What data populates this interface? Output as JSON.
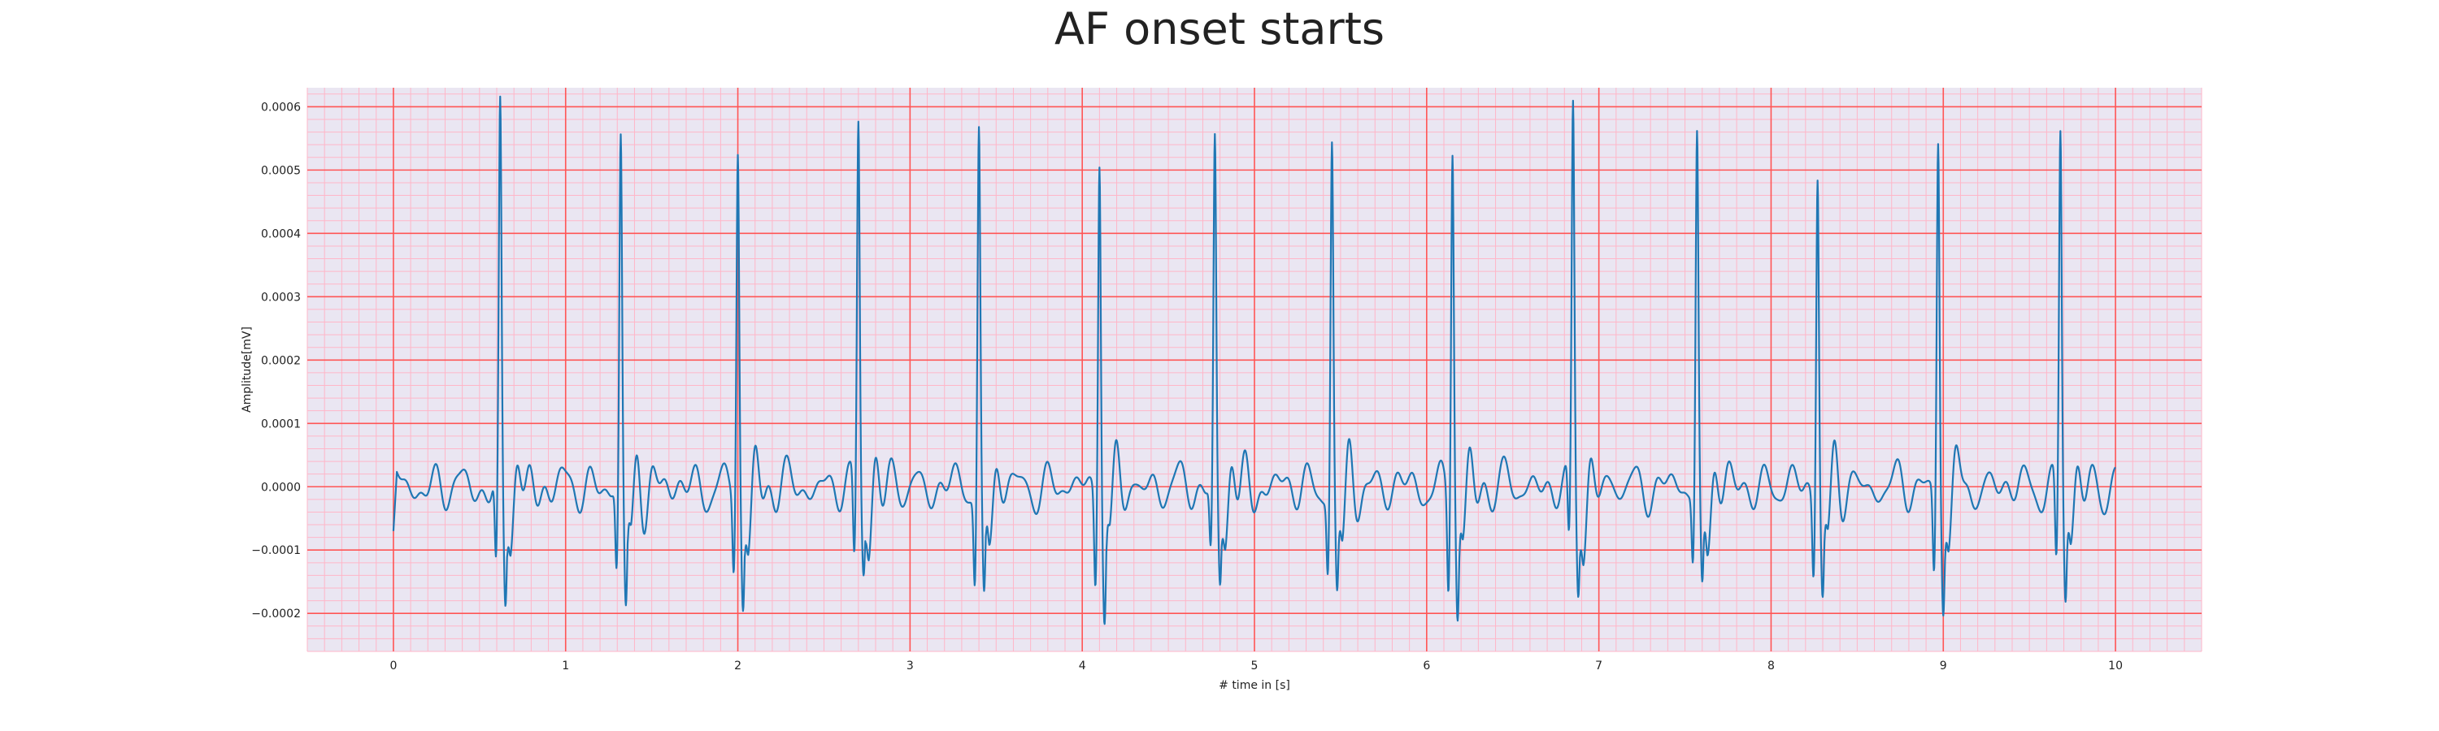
{
  "chart_data": {
    "type": "line",
    "title": "AF onset starts",
    "xlabel": "# time in [s]",
    "ylabel": "Amplitude[mV]",
    "xlim": [
      -0.5,
      10.5
    ],
    "ylim": [
      -0.00026,
      0.00063
    ],
    "x_ticks": [
      0,
      1,
      2,
      3,
      4,
      5,
      6,
      7,
      8,
      9,
      10
    ],
    "x_tick_labels": [
      "0",
      "1",
      "2",
      "3",
      "4",
      "5",
      "6",
      "7",
      "8",
      "9",
      "10"
    ],
    "y_ticks": [
      -0.0002,
      -0.0001,
      0.0,
      0.0001,
      0.0002,
      0.0003,
      0.0004,
      0.0005,
      0.0006
    ],
    "y_tick_labels": [
      "−0.0002",
      "−0.0001",
      "0.0000",
      "0.0001",
      "0.0002",
      "0.0003",
      "0.0004",
      "0.0005",
      "0.0006"
    ],
    "grid": true,
    "major_grid_color": "#ff5555",
    "minor_grid_color": "#ffb6c8",
    "background_color": "#eae6f2",
    "series": [
      {
        "color": "#1f77b4",
        "beats": [
          {
            "t": 0.62,
            "peak": 0.00058,
            "q": -0.00014,
            "s": -0.00019
          },
          {
            "t": 1.32,
            "peak": 0.000548,
            "q": -0.00013,
            "s": -0.0002
          },
          {
            "t": 2.0,
            "peak": 0.000532,
            "q": -0.00012,
            "s": -0.0002
          },
          {
            "t": 2.7,
            "peak": 0.000575,
            "q": -0.00013,
            "s": -0.00013
          },
          {
            "t": 3.4,
            "peak": 0.000562,
            "q": -0.00014,
            "s": -0.0002
          },
          {
            "t": 4.1,
            "peak": 0.000553,
            "q": -0.00014,
            "s": -0.000205
          },
          {
            "t": 4.77,
            "peak": 0.000537,
            "q": -0.0001,
            "s": -0.00016
          },
          {
            "t": 5.45,
            "peak": 0.000538,
            "q": -0.00012,
            "s": -0.000185
          },
          {
            "t": 6.15,
            "peak": 0.000553,
            "q": -0.00015,
            "s": -0.000215
          },
          {
            "t": 6.85,
            "peak": 0.00059,
            "q": -0.00011,
            "s": -0.00017
          },
          {
            "t": 7.57,
            "peak": 0.000543,
            "q": -0.00011,
            "s": -0.000185
          },
          {
            "t": 8.27,
            "peak": 0.00052,
            "q": -0.00012,
            "s": -0.000175
          },
          {
            "t": 8.97,
            "peak": 0.000557,
            "q": -0.00013,
            "s": -0.0002
          },
          {
            "t": 9.68,
            "peak": 0.000565,
            "q": -0.00013,
            "s": -0.00019
          }
        ],
        "baseline_noise_amplitude": 4e-05,
        "t_start": 0.0,
        "t_end": 10.0,
        "start_value": -7e-05
      }
    ]
  }
}
